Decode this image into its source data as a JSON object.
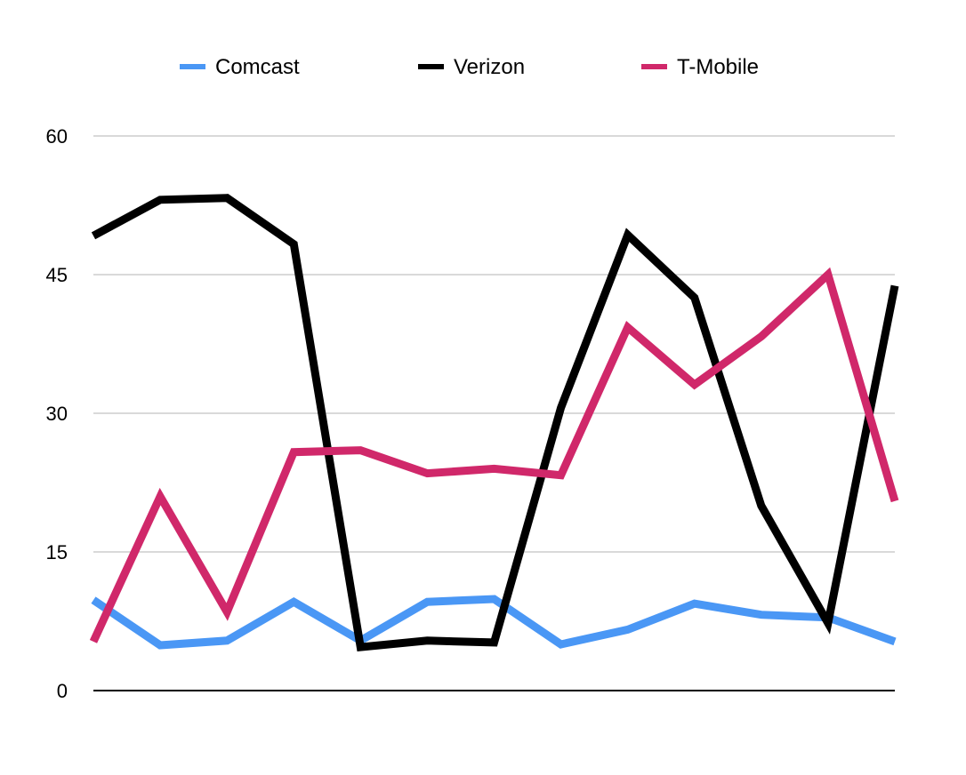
{
  "chart_data": {
    "type": "line",
    "title": "",
    "xlabel": "",
    "ylabel": "",
    "x": [
      1,
      2,
      3,
      4,
      5,
      6,
      7,
      8,
      9,
      10,
      11,
      12,
      13
    ],
    "ylim": [
      0,
      60
    ],
    "yticks": [
      "0",
      "15",
      "30",
      "45",
      "60"
    ],
    "grid": true,
    "legend_position": "top",
    "series": [
      {
        "name": "Comcast",
        "color": "#4a97f5",
        "values": [
          9.8,
          4.9,
          5.4,
          9.6,
          5.4,
          9.6,
          9.9,
          5.0,
          6.6,
          9.4,
          8.2,
          7.9,
          5.3
        ]
      },
      {
        "name": "Verizon",
        "color": "#000000",
        "values": [
          49.2,
          53.1,
          53.3,
          48.3,
          4.7,
          5.4,
          5.2,
          30.6,
          49.3,
          42.5,
          20.0,
          7.3,
          43.8
        ]
      },
      {
        "name": "T-Mobile",
        "color": "#d0286a",
        "values": [
          5.3,
          21.0,
          8.5,
          25.8,
          26.0,
          23.5,
          24.0,
          23.3,
          39.3,
          33.1,
          38.3,
          45.0,
          20.5
        ]
      }
    ]
  }
}
